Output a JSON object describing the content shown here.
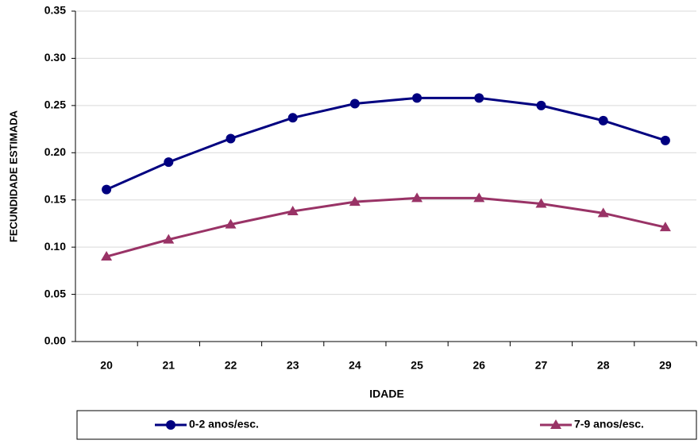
{
  "chart_data": {
    "type": "line",
    "x_label": "IDADE",
    "y_label": "FECUNDIDADE ESTIMADA",
    "categories": [
      "20",
      "21",
      "22",
      "23",
      "24",
      "25",
      "26",
      "27",
      "28",
      "29"
    ],
    "series": [
      {
        "name": "0-2 anos/esc.",
        "color": "#000080",
        "marker": "circle",
        "values": [
          0.161,
          0.19,
          0.215,
          0.237,
          0.252,
          0.258,
          0.258,
          0.25,
          0.234,
          0.213
        ]
      },
      {
        "name": "7-9 anos/esc.",
        "color": "#993366",
        "marker": "triangle",
        "values": [
          0.09,
          0.108,
          0.124,
          0.138,
          0.148,
          0.152,
          0.152,
          0.146,
          0.136,
          0.121
        ]
      }
    ],
    "ylim": [
      0,
      0.35
    ],
    "yticks": [
      {
        "value": 0,
        "label": "0.00"
      },
      {
        "value": 0.05,
        "label": "0.05"
      },
      {
        "value": 0.1,
        "label": "0.10"
      },
      {
        "value": 0.15,
        "label": "0.15"
      },
      {
        "value": 0.2,
        "label": "0.20"
      },
      {
        "value": 0.25,
        "label": "0.25"
      },
      {
        "value": 0.3,
        "label": "0.30"
      },
      {
        "value": 0.35,
        "label": "0.35"
      }
    ],
    "grid": true,
    "legend": "bottom"
  }
}
